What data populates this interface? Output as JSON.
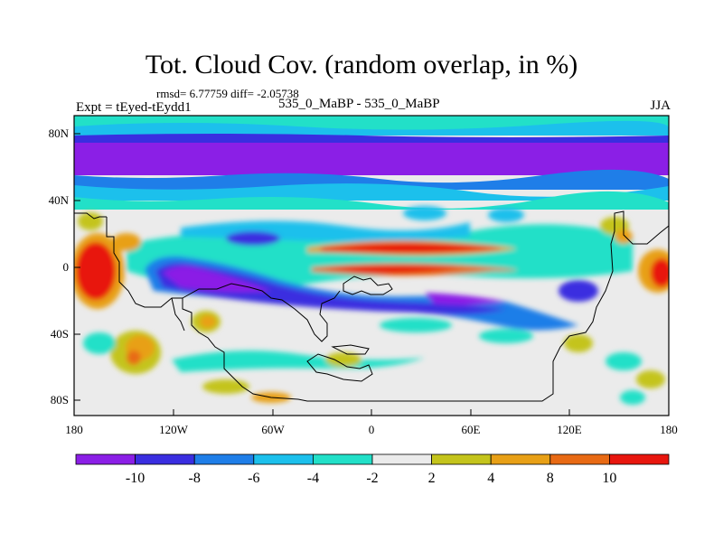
{
  "header": {
    "title": "Tot. Cloud Cov. (random overlap, in %)",
    "stats": "rmsd= 6.77759 diff= -2.05738",
    "left_label": "Expt = tEyed-tEydd1",
    "center_label": "535_0_MaBP - 535_0_MaBP",
    "right_label": "JJA"
  },
  "map": {
    "lon_range": [
      -180,
      180
    ],
    "lat_range": [
      -90,
      90
    ],
    "x_ticks": [
      "180",
      "120W",
      "60W",
      "0",
      "60E",
      "120E",
      "180"
    ],
    "y_ticks": [
      "80N",
      "40N",
      "0",
      "40S",
      "80S"
    ]
  },
  "colorbar": {
    "colors": [
      "#8b1fe6",
      "#3a2ee0",
      "#1f7ee8",
      "#1cc0ec",
      "#22e0c8",
      "#ebebeb",
      "#c4c41c",
      "#e8a016",
      "#e86a14",
      "#e8160e"
    ],
    "labels": [
      "-10",
      "-8",
      "-6",
      "-4",
      "-2",
      "2",
      "4",
      "8",
      "10"
    ]
  }
}
